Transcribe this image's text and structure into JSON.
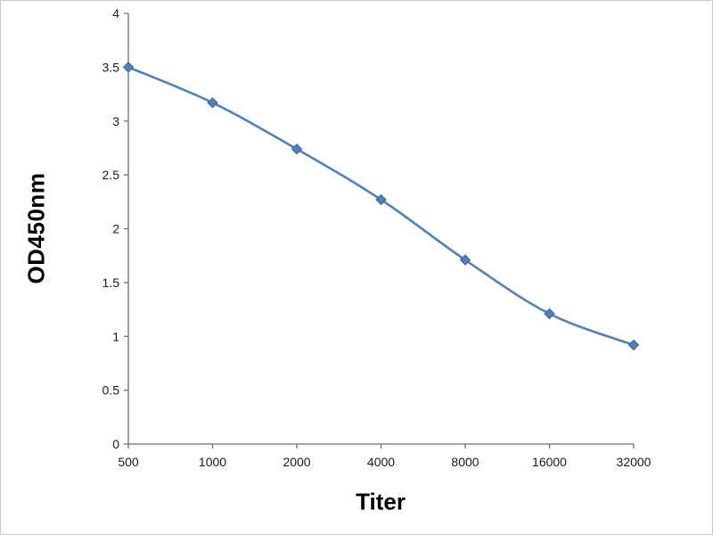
{
  "chart_data": {
    "type": "line",
    "title": "",
    "xlabel": "Titer",
    "ylabel": "OD450nm",
    "categories": [
      "500",
      "1000",
      "2000",
      "4000",
      "8000",
      "16000",
      "32000"
    ],
    "series": [
      {
        "name": "OD450nm",
        "values": [
          3.5,
          3.17,
          2.74,
          2.27,
          1.71,
          1.21,
          0.92
        ]
      }
    ],
    "ylim": [
      0,
      4
    ],
    "ytick_step": 0.5,
    "yticks": [
      "0",
      "0.5",
      "1",
      "1.5",
      "2",
      "2.5",
      "3",
      "3.5",
      "4"
    ],
    "grid": false,
    "legend_position": "none",
    "line_color": "#4f81bd",
    "marker": "diamond",
    "marker_color": "#4f81bd",
    "marker_edge_color": "#38629a",
    "axis_color": "#6e6e6e"
  }
}
